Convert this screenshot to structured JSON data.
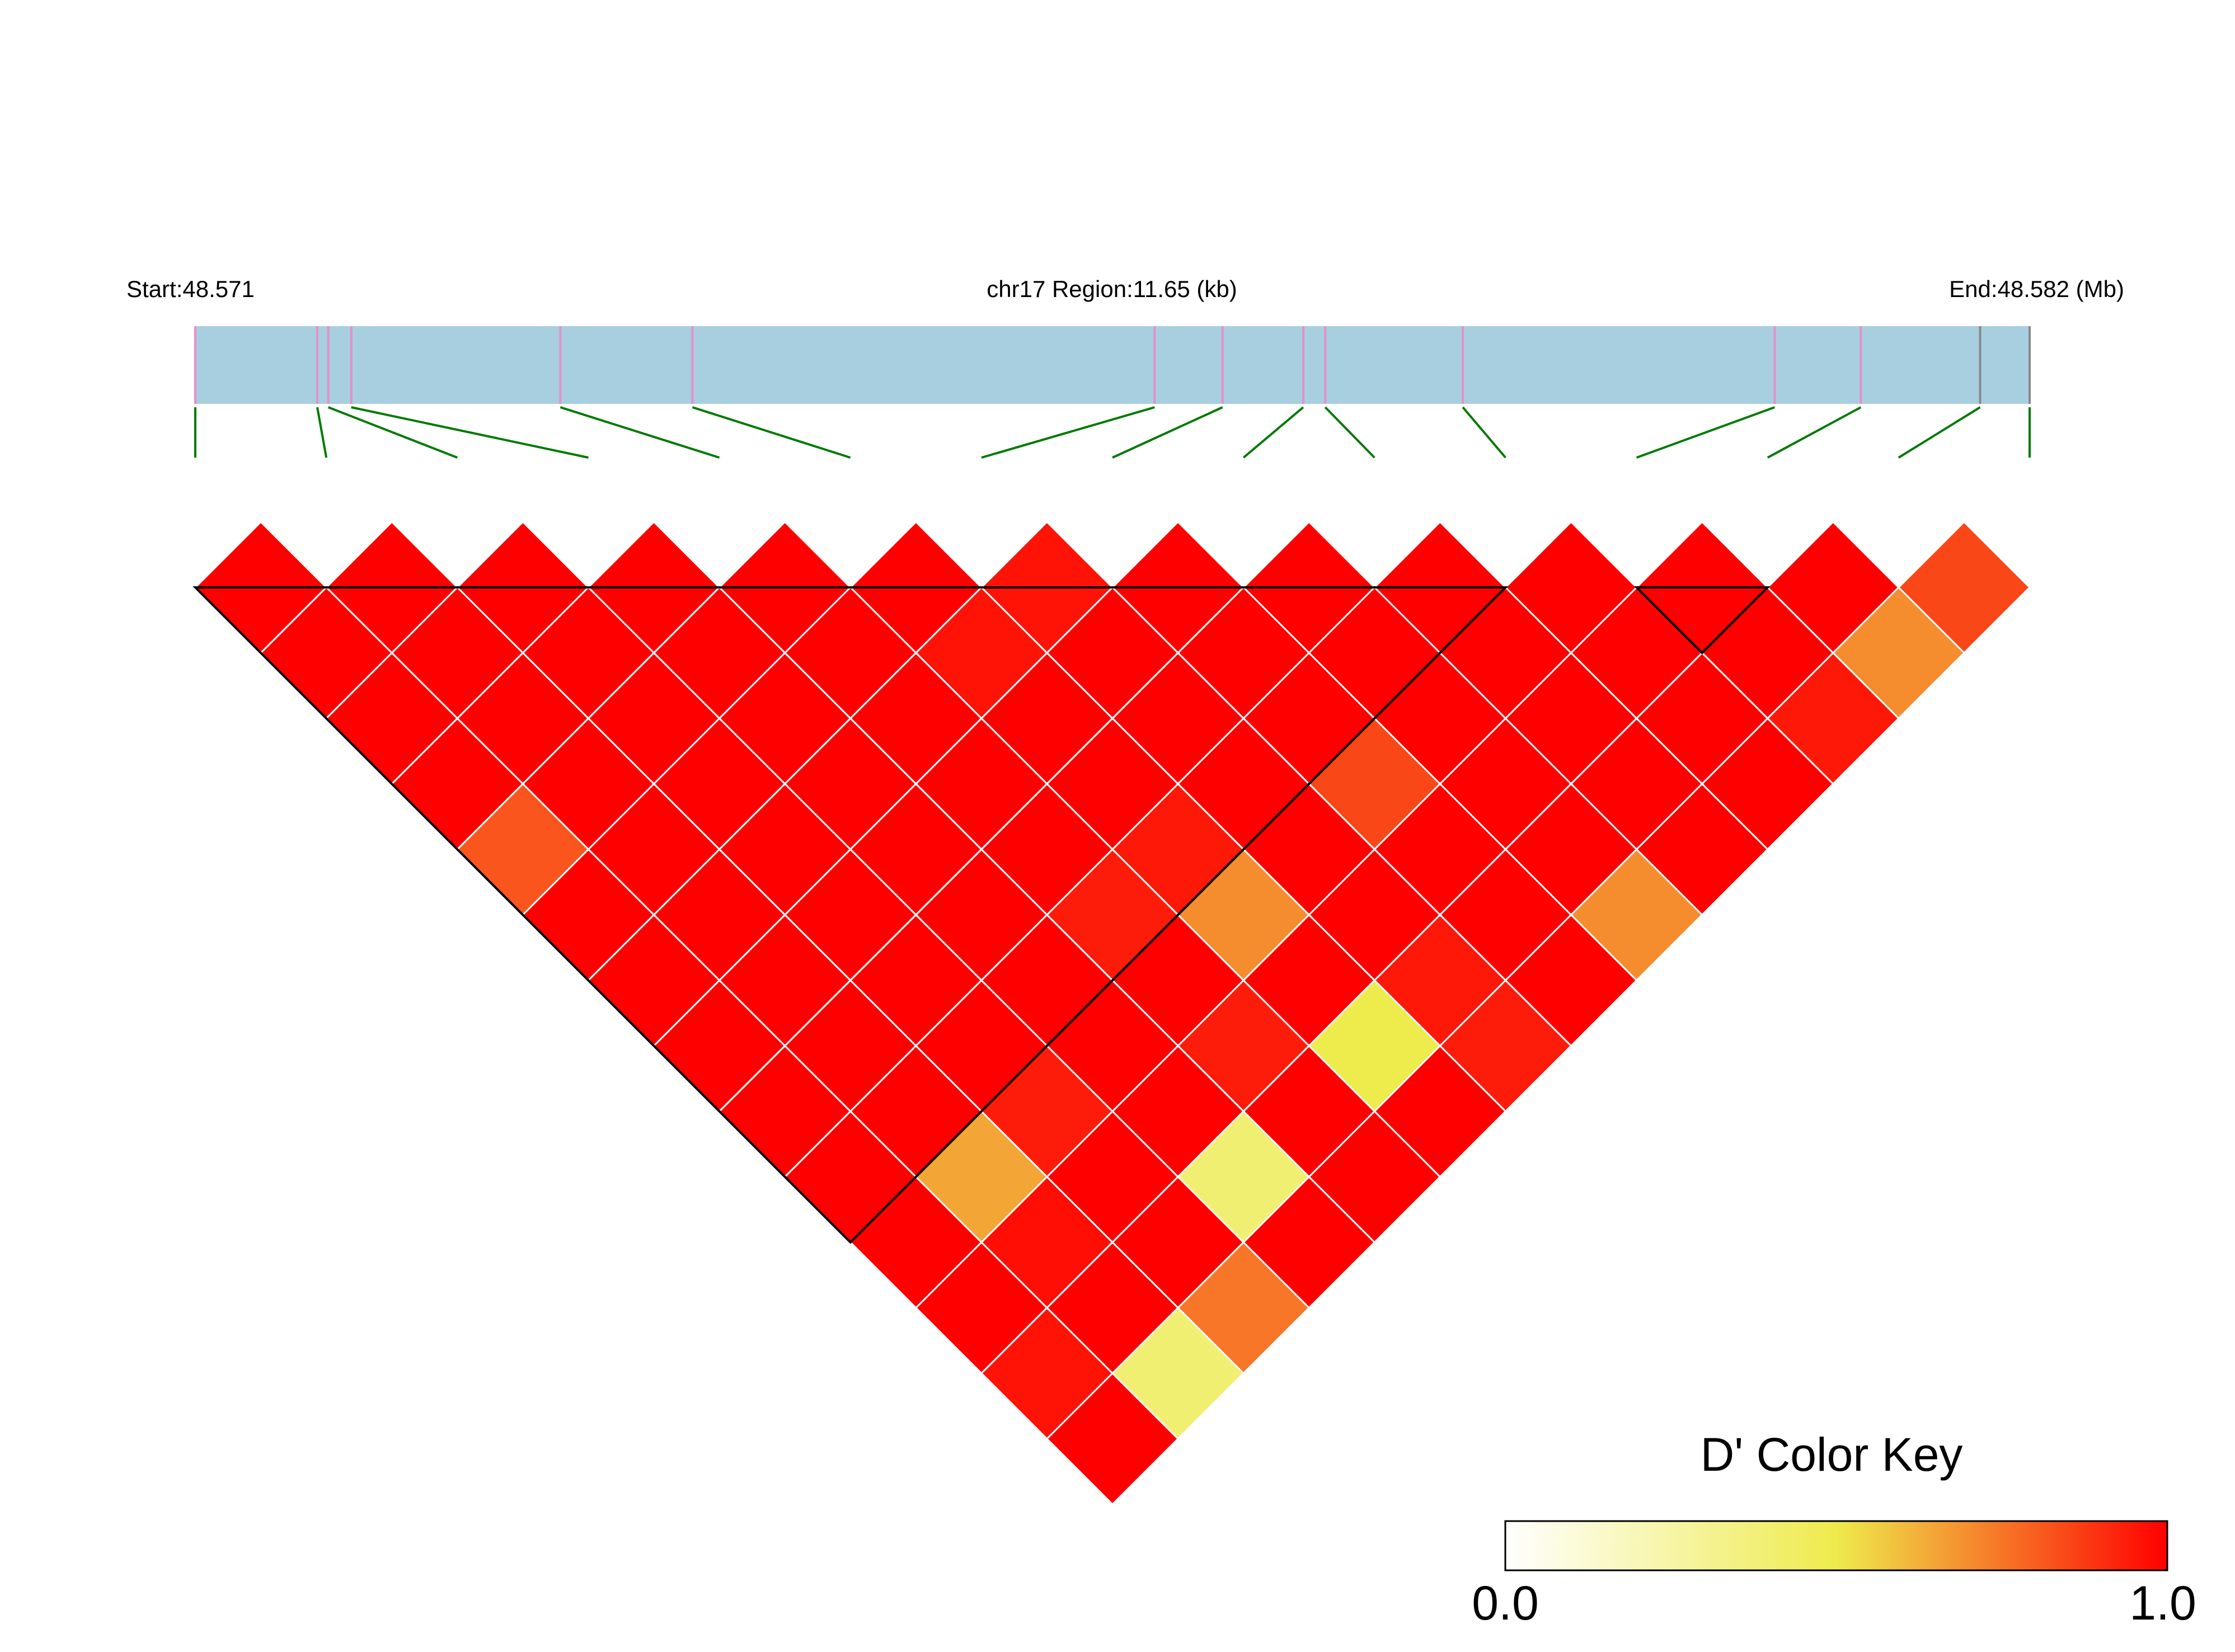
{
  "chart_data": {
    "type": "heatmap",
    "title": "",
    "region": {
      "start_label": "Start:48.571",
      "center_label": "chr17 Region:11.65 (kb)",
      "end_label": "End:48.582 (Mb)",
      "start_mb": 48.571,
      "end_mb": 48.582,
      "length_kb": 11.65,
      "chromosome": "chr17"
    },
    "snp_positions_fraction": [
      0,
      0.0665,
      0.0725,
      0.085,
      0.199,
      0.271,
      0.523,
      0.56,
      0.604,
      0.616,
      0.691,
      0.861,
      0.908,
      0.973,
      1.0
    ],
    "snp_tick_colors": [
      "#e58fc8",
      "#e58fc8",
      "#e58fc8",
      "#e58fc8",
      "#e58fc8",
      "#e58fc8",
      "#e58fc8",
      "#e58fc8",
      "#e58fc8",
      "#e58fc8",
      "#e58fc8",
      "#e58fc8",
      "#e58fc8",
      "#888888",
      "#888888"
    ],
    "ld_matrix_dprime": [
      [
        1.0,
        1.0,
        1.0,
        1.0,
        1.0,
        1.0,
        0.96,
        1.0,
        1.0,
        1.0,
        1.0,
        1.0,
        1.0,
        0.85
      ],
      [
        1.0,
        1.0,
        1.0,
        1.0,
        1.0,
        0.96,
        1.0,
        1.0,
        1.0,
        1.0,
        1.0,
        1.0,
        0.7
      ],
      [
        1.0,
        1.0,
        1.0,
        1.0,
        1.0,
        1.0,
        1.0,
        1.0,
        1.0,
        1.0,
        1.0,
        0.95
      ],
      [
        1.0,
        1.0,
        1.0,
        1.0,
        1.0,
        1.0,
        1.0,
        0.85,
        1.0,
        1.0,
        1.0
      ],
      [
        0.82,
        1.0,
        1.0,
        1.0,
        1.0,
        0.95,
        1.0,
        1.0,
        1.0,
        1.0
      ],
      [
        1.0,
        1.0,
        1.0,
        1.0,
        0.94,
        0.7,
        1.0,
        1.0,
        0.7
      ],
      [
        1.0,
        1.0,
        1.0,
        1.0,
        1.0,
        1.0,
        0.95,
        1.0
      ],
      [
        1.0,
        1.0,
        1.0,
        1.0,
        0.94,
        0.5,
        0.94
      ],
      [
        1.0,
        1.0,
        0.94,
        1.0,
        1.0,
        1.0
      ],
      [
        1.0,
        0.65,
        1.0,
        0.4,
        1.0
      ],
      [
        1.0,
        0.97,
        1.0,
        1.0
      ],
      [
        1.0,
        1.0,
        0.75
      ],
      [
        0.96,
        0.4
      ],
      [
        1.0
      ]
    ],
    "haplotype_blocks": [
      [
        0,
        10
      ],
      [
        11,
        12
      ]
    ],
    "color_scale": {
      "label": "D' Color Key",
      "min_label": "0.0",
      "max_label": "1.0",
      "min": 0.0,
      "max": 1.0,
      "colors": [
        "#ffffff",
        "#eeeb4d",
        "#ff0000"
      ]
    },
    "colors": {
      "region_bar": "#a8cfe0",
      "connector": "#007a00",
      "cell_border": "#ffffff",
      "block_outline": "#000000"
    }
  }
}
